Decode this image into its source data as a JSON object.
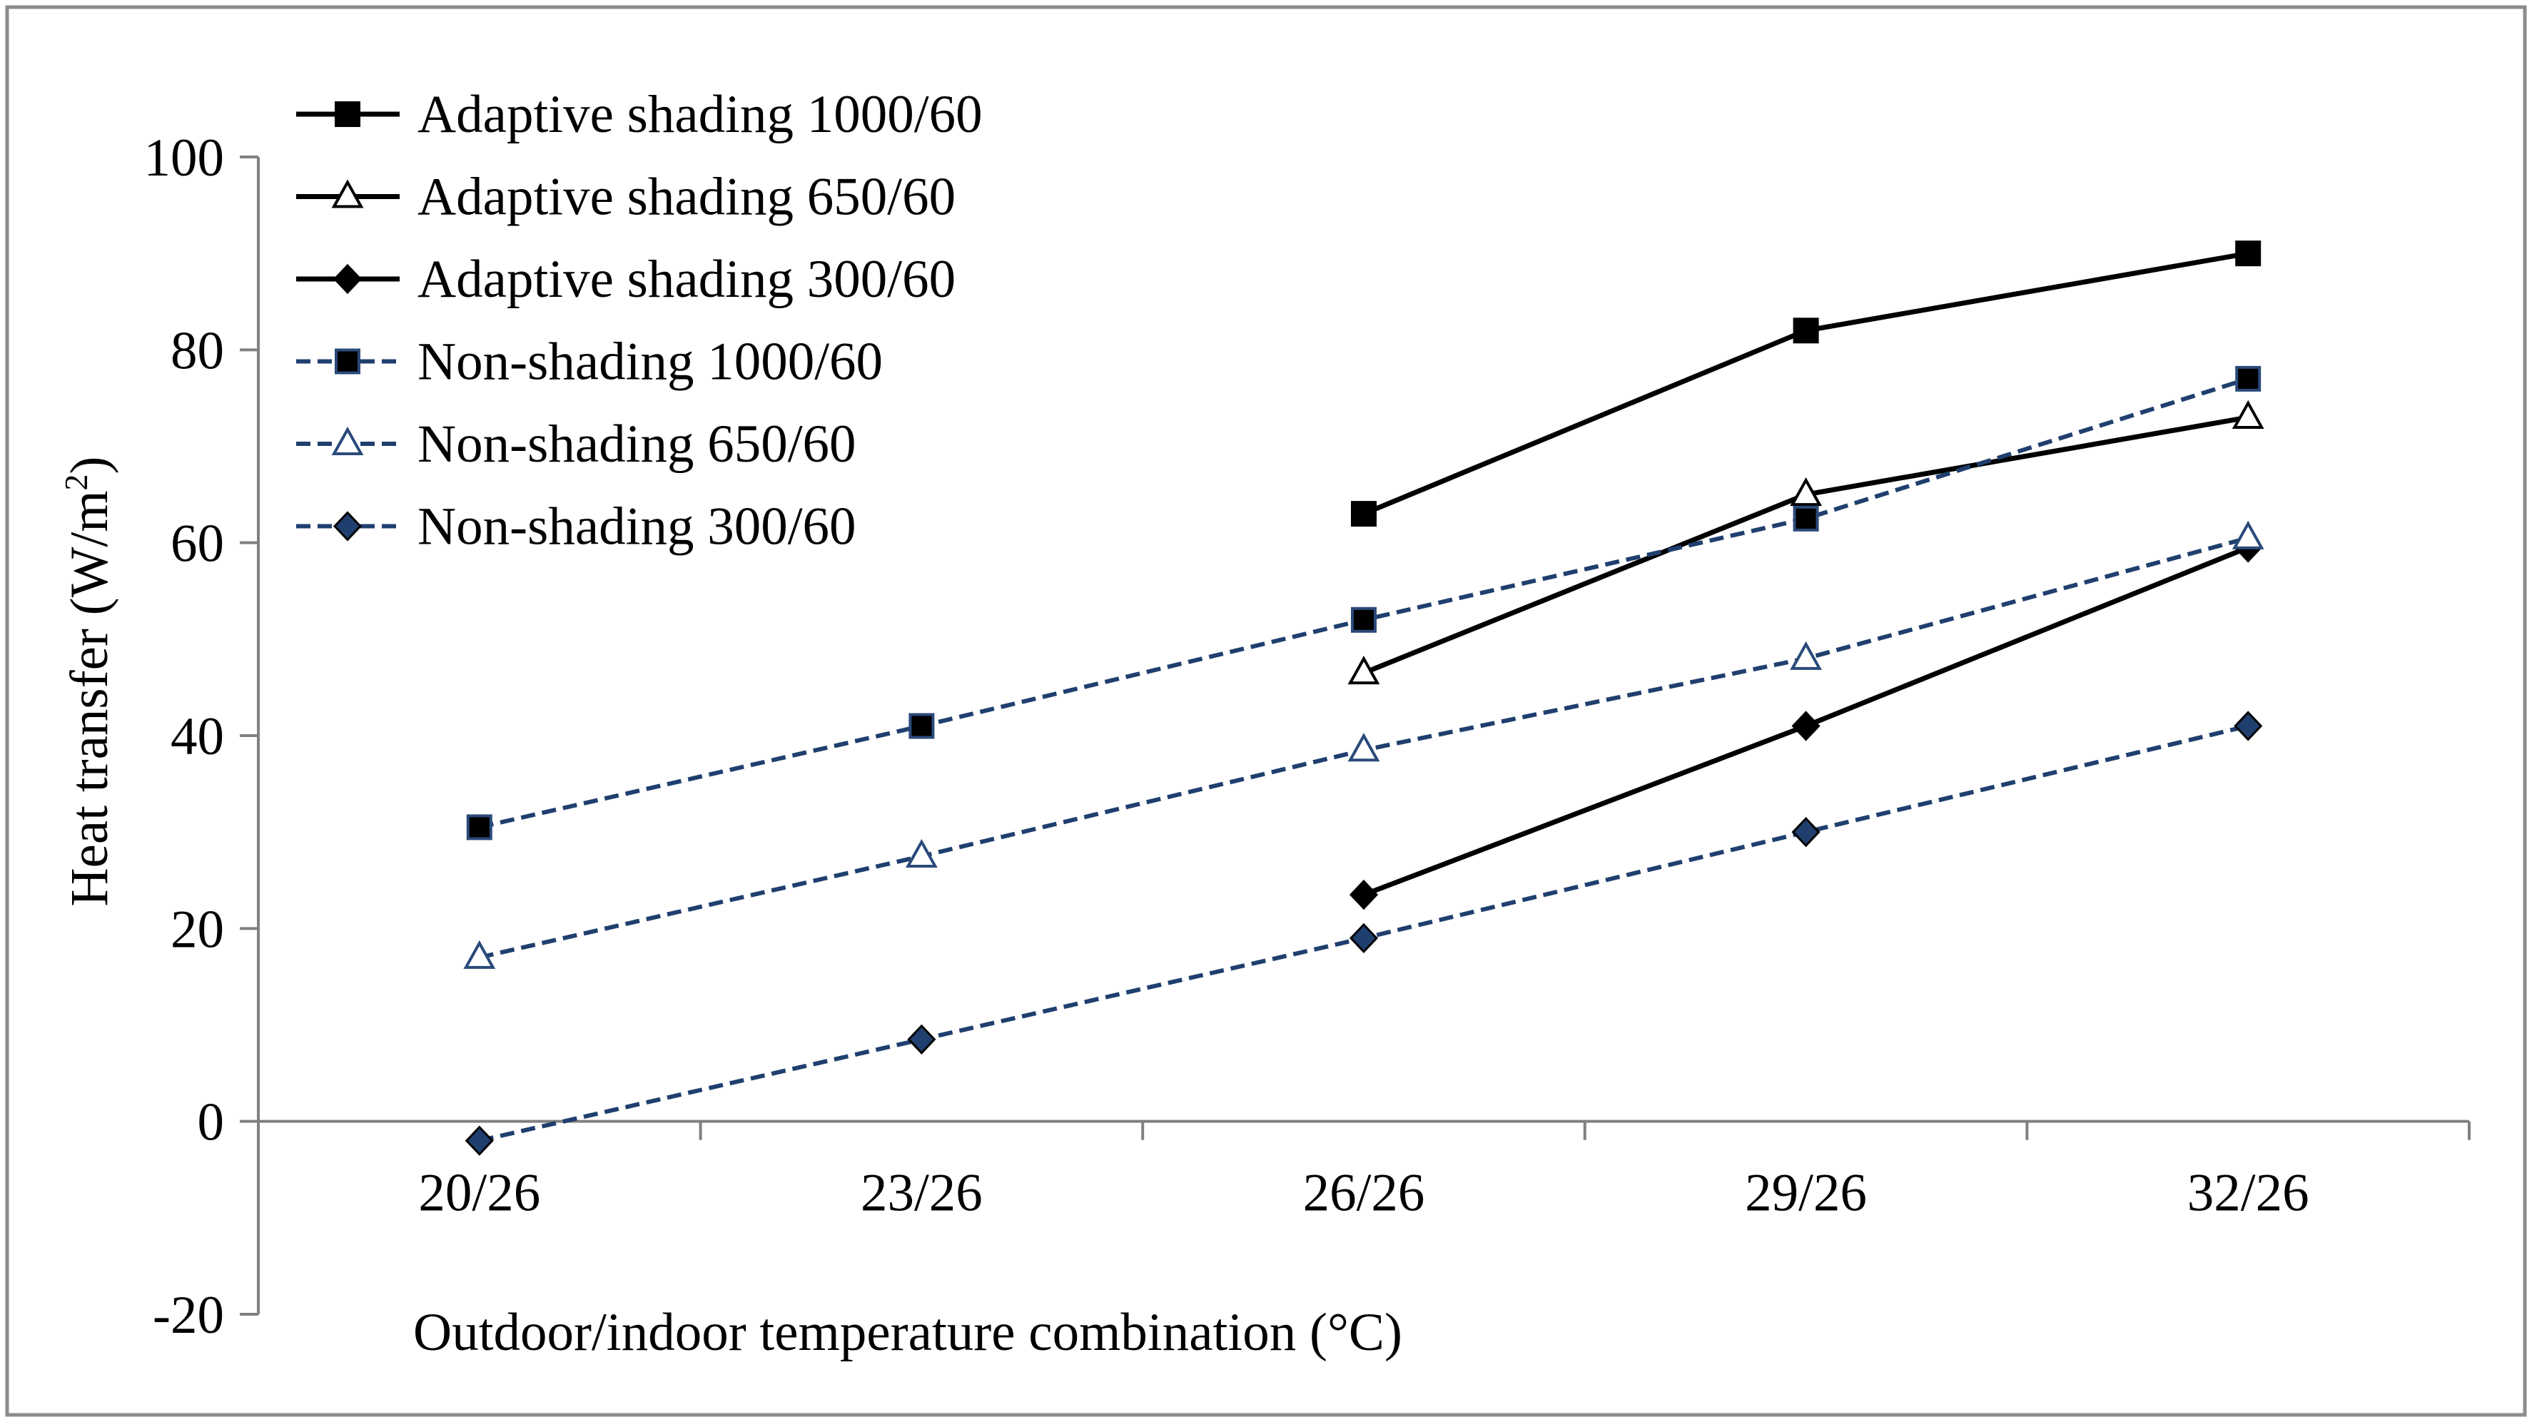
{
  "chart_data": {
    "type": "line",
    "title": "",
    "xlabel": "Outdoor/indoor temperature combination (°C)",
    "ylabel_main": "Heat transfer (W/m",
    "ylabel_sup": "2",
    "ylabel_close": ")",
    "ylabel": "Heat transfer (W/m²)",
    "categories": [
      "20/26",
      "23/26",
      "26/26",
      "29/26",
      "32/26"
    ],
    "ylim": [
      -20,
      100
    ],
    "yticks": [
      -20,
      0,
      20,
      40,
      60,
      80,
      100
    ],
    "ytick_labels": [
      "-20",
      "0",
      "20",
      "40",
      "60",
      "80",
      "100"
    ],
    "grid": false,
    "legend_position": "top-left",
    "series": [
      {
        "name": "Adaptive shading 1000/60",
        "values": [
          null,
          null,
          63,
          82,
          90
        ],
        "color": "#000000",
        "dash": "solid",
        "marker": "square",
        "marker_fill": "#000000"
      },
      {
        "name": "Adaptive shading 650/60",
        "values": [
          null,
          null,
          46.5,
          65,
          73
        ],
        "color": "#000000",
        "dash": "solid",
        "marker": "triangle",
        "marker_fill": "#ffffff"
      },
      {
        "name": "Adaptive shading 300/60",
        "values": [
          null,
          null,
          23.5,
          41,
          59.5
        ],
        "color": "#000000",
        "dash": "solid",
        "marker": "diamond",
        "marker_fill": "#000000"
      },
      {
        "name": "Non-shading 1000/60",
        "values": [
          30.5,
          41,
          52,
          62.5,
          77
        ],
        "color": "#1f3f6e",
        "dash": "dashed",
        "marker": "square",
        "marker_fill": "#000000"
      },
      {
        "name": "Non-shading 650/60",
        "values": [
          17,
          27.5,
          38.5,
          48,
          60.5
        ],
        "color": "#1f3f6e",
        "dash": "dashed",
        "marker": "triangle",
        "marker_fill": "#ffffff"
      },
      {
        "name": "Non-shading 300/60",
        "values": [
          -2,
          8.5,
          19,
          30,
          41
        ],
        "color": "#1f3f6e",
        "dash": "dashed",
        "marker": "diamond",
        "marker_fill": "#1f3f6e"
      }
    ]
  }
}
